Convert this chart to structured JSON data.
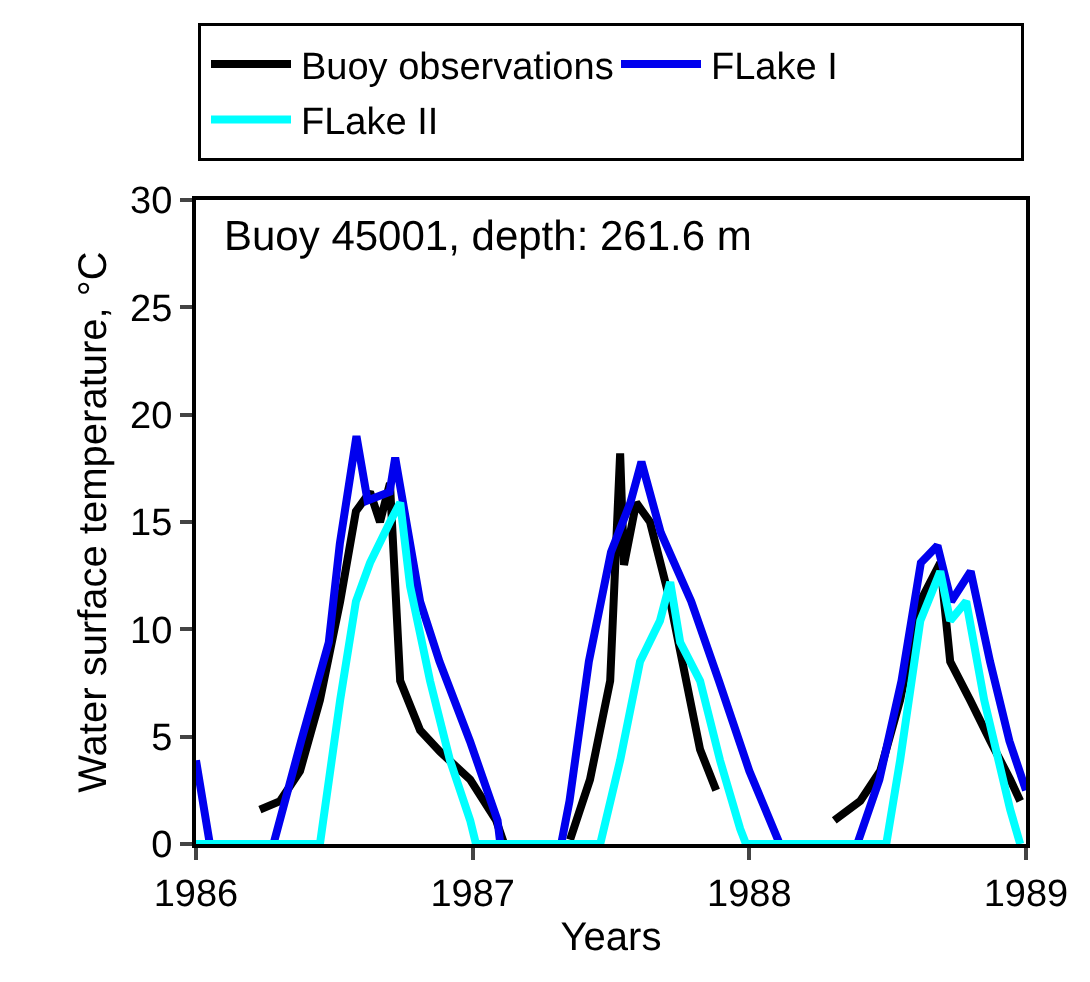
{
  "chart_data": {
    "type": "line",
    "title": "Buoy 45001, depth: 261.6 m",
    "xlabel": "Years",
    "ylabel": "Water surface temperature, °C",
    "xlim": [
      1986,
      1989
    ],
    "xticks": [
      1986,
      1987,
      1988,
      1989
    ],
    "ylim": [
      0,
      30
    ],
    "yticks": [
      0,
      5,
      10,
      15,
      20,
      25,
      30
    ],
    "grid": false,
    "legend": "top",
    "marker": "none",
    "line_style": "solid",
    "series": [
      {
        "name": "Buoy observations",
        "color": "#000000",
        "x": [
          1986.231,
          1986.304,
          1986.376,
          1986.448,
          1986.521,
          1986.578,
          1986.629,
          1986.665,
          1986.701,
          1986.738,
          1986.81,
          1986.882,
          1986.991,
          1987.085,
          1987.114,
          1987.2,
          1987.352,
          1987.424,
          1987.497,
          1987.533,
          1987.547,
          1987.591,
          1987.641,
          1987.714,
          1987.822,
          1987.88,
          1988.1,
          1988.307,
          1988.401,
          1988.473,
          1988.545,
          1988.618,
          1988.69,
          1988.726,
          1988.798,
          1988.871,
          1988.943,
          1988.979
        ],
        "values": [
          1.6,
          2,
          3.4,
          6.7,
          11.3,
          15.5,
          16.4,
          15,
          16.8,
          7.6,
          5.3,
          4.3,
          3,
          1.1,
          0,
          null,
          0.2,
          3,
          7.6,
          18.2,
          13,
          15.9,
          15,
          11.3,
          4.4,
          2.5,
          null,
          1.1,
          2,
          3.4,
          6.7,
          11.3,
          13.1,
          8.5,
          6.7,
          4.8,
          3,
          2
        ]
      },
      {
        "name": "FLake I",
        "color": "#0000ee",
        "x": [
          1986.0,
          1986.05,
          1986.28,
          1986.38,
          1986.48,
          1986.52,
          1986.58,
          1986.62,
          1986.7,
          1986.72,
          1986.81,
          1986.88,
          1986.99,
          1987.09,
          1987.1,
          1987.32,
          1987.35,
          1987.42,
          1987.5,
          1987.57,
          1987.61,
          1987.68,
          1987.79,
          1987.89,
          1988.0,
          1988.11,
          1988.39,
          1988.47,
          1988.55,
          1988.62,
          1988.68,
          1988.73,
          1988.8,
          1988.87,
          1988.94,
          1989.0
        ],
        "values": [
          3.9,
          0,
          0,
          4.8,
          9.4,
          14,
          19,
          16,
          16.4,
          18,
          11.3,
          8.5,
          4.8,
          1.1,
          0,
          0,
          2,
          8.5,
          13.6,
          15.9,
          17.8,
          14.5,
          11.3,
          7.6,
          3.4,
          0,
          0,
          3,
          7.6,
          13.1,
          13.9,
          11.3,
          12.7,
          8.5,
          4.8,
          2.5
        ]
      },
      {
        "name": "FLake II",
        "color": "#00ffff",
        "x": [
          1986.0,
          1986.448,
          1986.521,
          1986.578,
          1986.629,
          1986.701,
          1986.738,
          1986.774,
          1986.846,
          1986.918,
          1986.991,
          1987.012,
          1987.461,
          1987.533,
          1987.605,
          1987.677,
          1987.714,
          1987.75,
          1987.822,
          1987.894,
          1987.967,
          1987.988,
          1988.495,
          1988.545,
          1988.618,
          1988.69,
          1988.726,
          1988.784,
          1988.849,
          1988.943,
          1988.979
        ],
        "values": [
          0,
          0,
          6.7,
          11.3,
          13.1,
          15,
          15.9,
          12,
          7.6,
          3.9,
          1.1,
          0,
          0,
          3.9,
          8.5,
          10.4,
          12.2,
          9.4,
          7.6,
          3.9,
          0.7,
          0,
          0,
          3.9,
          10.4,
          12.7,
          10.4,
          11.3,
          6.7,
          1.6,
          0
        ]
      }
    ]
  }
}
